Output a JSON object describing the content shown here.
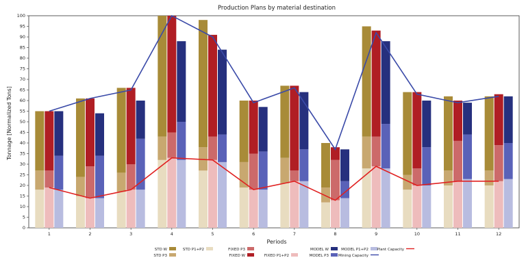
{
  "chart_data": {
    "type": "bar",
    "title": "Production Plans by material destination",
    "xlabel": "Periods",
    "ylabel": "Tonnage [Normalized Tons]",
    "ylim": [
      0,
      100
    ],
    "yticks": [
      0,
      5,
      10,
      15,
      20,
      25,
      30,
      35,
      40,
      45,
      50,
      55,
      60,
      65,
      70,
      75,
      80,
      85,
      90,
      95,
      100
    ],
    "grid": false,
    "legend_position": "bottom",
    "categories": [
      "1",
      "2",
      "3",
      "4",
      "5",
      "6",
      "7",
      "8",
      "9",
      "10",
      "11",
      "12"
    ],
    "groups": [
      {
        "name": "STD",
        "stack": [
          {
            "name": "STD P1+P2",
            "color": "#e8dcc0",
            "values": [
              18,
              15,
              17,
              32,
              27,
              19,
              21,
              12,
              28,
              18,
              20,
              20
            ]
          },
          {
            "name": "STD P3",
            "color": "#c8a870",
            "values": [
              9,
              9,
              9,
              11,
              11,
              12,
              12,
              7,
              15,
              7,
              7,
              7
            ]
          },
          {
            "name": "STD W",
            "color": "#a88b38",
            "values": [
              28,
              37,
              40,
              57,
              60,
              29,
              34,
              21,
              52,
              39,
              35,
              35
            ]
          }
        ]
      },
      {
        "name": "FIXED",
        "stack": [
          {
            "name": "FIXED P1+P2",
            "color": "#eebcbc",
            "values": [
              19,
              14,
              18,
              33,
              32,
              18,
              22,
              13,
              29,
              20,
              22,
              22
            ]
          },
          {
            "name": "FIXED P3",
            "color": "#cc6a6a",
            "values": [
              8,
              15,
              12,
              12,
              11,
              17,
              5,
              19,
              14,
              8,
              19,
              17
            ]
          },
          {
            "name": "FIXED W",
            "color": "#b01e24",
            "values": [
              28,
              32,
              36,
              55,
              48,
              25,
              40,
              6,
              50,
              36,
              19,
              24
            ]
          }
        ]
      },
      {
        "name": "MODEL",
        "stack": [
          {
            "name": "MODEL P1+P2",
            "color": "#b8bce0",
            "values": [
              18,
              14,
              18,
              32,
              31,
              18,
              22,
              14,
              28,
              20,
              23,
              23
            ]
          },
          {
            "name": "MODEL P3",
            "color": "#5a62b8",
            "values": [
              16,
              20,
              24,
              18,
              13,
              18,
              15,
              8,
              21,
              18,
              21,
              17
            ]
          },
          {
            "name": "MODEL W",
            "color": "#26307e",
            "values": [
              21,
              20,
              18,
              38,
              40,
              21,
              27,
              15,
              39,
              22,
              15,
              22
            ]
          }
        ]
      }
    ],
    "lines": [
      {
        "name": "Mining Capacity",
        "color": "#3a4aa8",
        "values": [
          55,
          61,
          65,
          100,
          90,
          59,
          66,
          37,
          92,
          63,
          59,
          62
        ]
      },
      {
        "name": "Plant Capacity",
        "color": "#e02020",
        "values": [
          19,
          14,
          18,
          33,
          32,
          18,
          22,
          13,
          29,
          20,
          22,
          22
        ]
      }
    ],
    "legend": [
      {
        "label": "STD W",
        "color": "#a88b38",
        "kind": "bar"
      },
      {
        "label": "STD P3",
        "color": "#c8a870",
        "kind": "bar"
      },
      {
        "label": "STD P1+P2",
        "color": "#e8dcc0",
        "kind": "bar"
      },
      {
        "label": "FIXED W",
        "color": "#b01e24",
        "kind": "bar"
      },
      {
        "label": "FIXED P3",
        "color": "#cc6a6a",
        "kind": "bar"
      },
      {
        "label": "FIXED P1+P2",
        "color": "#eebcbc",
        "kind": "bar"
      },
      {
        "label": "MODEL W",
        "color": "#26307e",
        "kind": "bar"
      },
      {
        "label": "MODEL P3",
        "color": "#5a62b8",
        "kind": "bar"
      },
      {
        "label": "Mining Capacity",
        "color": "#3a4aa8",
        "kind": "line"
      },
      {
        "label": "MODEL P1+P2",
        "color": "#b8bce0",
        "kind": "bar"
      },
      {
        "label": "Plant Capacity",
        "color": "#e02020",
        "kind": "line"
      }
    ]
  }
}
